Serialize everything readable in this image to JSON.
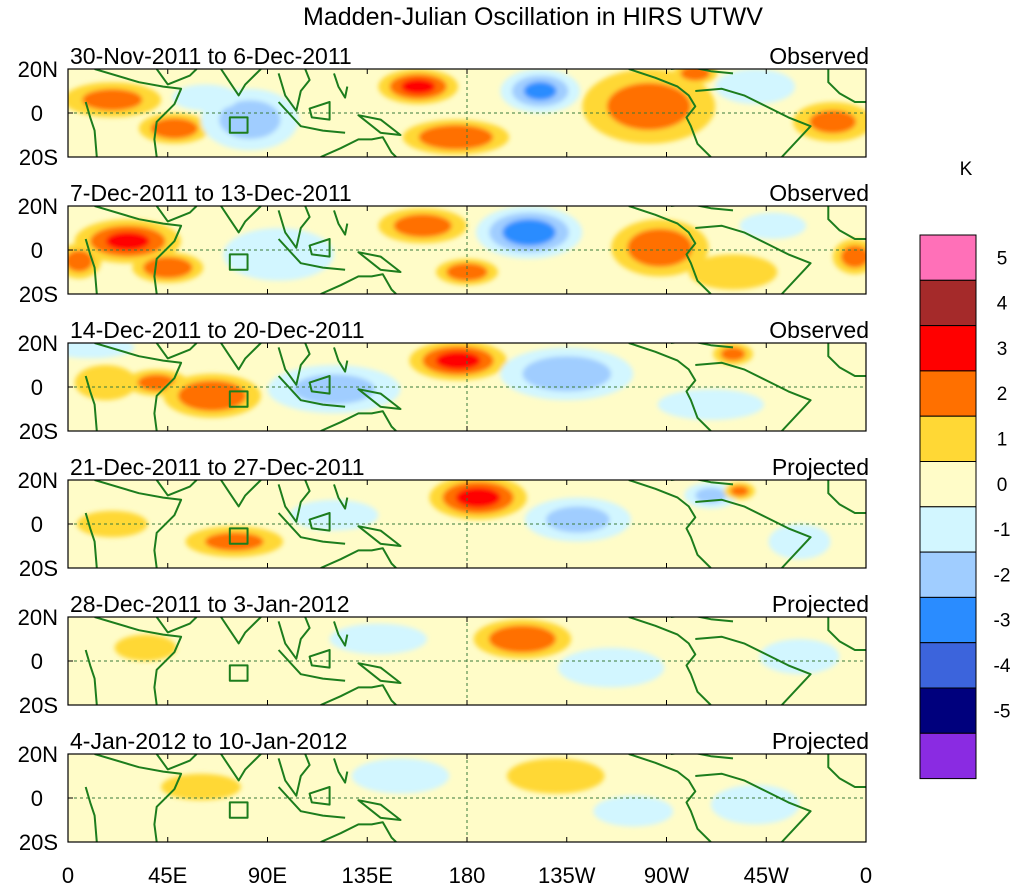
{
  "chart_data": {
    "type": "heatmap",
    "title": "Madden-Julian Oscillation in HIRS UTWV",
    "units": "K",
    "x_ticks": [
      "0",
      "45E",
      "90E",
      "135E",
      "180",
      "135W",
      "90W",
      "45W",
      "0"
    ],
    "x_values": [
      0,
      45,
      90,
      135,
      180,
      225,
      270,
      315,
      360
    ],
    "y_ticks": [
      "20N",
      "0",
      "20S"
    ],
    "y_values": [
      20,
      0,
      -20
    ],
    "colorbar": {
      "labels": [
        "5",
        "4",
        "3",
        "2",
        "1",
        "0",
        "-1",
        "-2",
        "-3",
        "-4",
        "-5"
      ],
      "levels": [
        5,
        4,
        3,
        2,
        1,
        0,
        -1,
        -2,
        -3,
        -4,
        -5
      ],
      "colors": [
        "#ff70b8",
        "#a52a2a",
        "#ff0000",
        "#ff7000",
        "#ffd835",
        "#fffcc8",
        "#d2f6ff",
        "#a0cdff",
        "#2a8cff",
        "#3c64dc",
        "#00007d",
        "#8a2be2"
      ]
    },
    "panels": [
      {
        "period": "30-Nov-2011 to 6-Dec-2011",
        "status": "Observed",
        "anomalies": [
          {
            "lon": 20,
            "lat": 6,
            "rx": 22,
            "ry": 8,
            "v": 2.2
          },
          {
            "lon": 48,
            "lat": -7,
            "rx": 16,
            "ry": 7,
            "v": 2.6
          },
          {
            "lon": 82,
            "lat": -3,
            "rx": 22,
            "ry": 14,
            "v": -2.3
          },
          {
            "lon": 62,
            "lat": 7,
            "rx": 15,
            "ry": 6,
            "v": -1.2
          },
          {
            "lon": 158,
            "lat": 12,
            "rx": 18,
            "ry": 8,
            "v": 3.1
          },
          {
            "lon": 175,
            "lat": -11,
            "rx": 24,
            "ry": 8,
            "v": 2.9
          },
          {
            "lon": 213,
            "lat": 10,
            "rx": 18,
            "ry": 10,
            "v": -3.0
          },
          {
            "lon": 262,
            "lat": 3,
            "rx": 30,
            "ry": 17,
            "v": 2.3
          },
          {
            "lon": 283,
            "lat": 18,
            "rx": 10,
            "ry": 5,
            "v": 2.6
          },
          {
            "lon": 345,
            "lat": -4,
            "rx": 18,
            "ry": 9,
            "v": 2.0
          },
          {
            "lon": 150,
            "lat": -2,
            "rx": 20,
            "ry": 9,
            "v": -0.7
          },
          {
            "lon": 310,
            "lat": 12,
            "rx": 18,
            "ry": 8,
            "v": -1.3
          }
        ]
      },
      {
        "period": "7-Dec-2011 to 13-Dec-2011",
        "status": "Observed",
        "anomalies": [
          {
            "lon": 27,
            "lat": 4,
            "rx": 24,
            "ry": 10,
            "v": 3.0
          },
          {
            "lon": 45,
            "lat": -8,
            "rx": 16,
            "ry": 7,
            "v": 2.9
          },
          {
            "lon": 5,
            "lat": -5,
            "rx": 10,
            "ry": 8,
            "v": 2.2
          },
          {
            "lon": 95,
            "lat": -2,
            "rx": 25,
            "ry": 12,
            "v": -1.8
          },
          {
            "lon": 160,
            "lat": 11,
            "rx": 20,
            "ry": 8,
            "v": 2.5
          },
          {
            "lon": 180,
            "lat": -10,
            "rx": 14,
            "ry": 6,
            "v": 2.6
          },
          {
            "lon": 208,
            "lat": 8,
            "rx": 24,
            "ry": 12,
            "v": -3.6
          },
          {
            "lon": 267,
            "lat": 1,
            "rx": 22,
            "ry": 13,
            "v": 2.6
          },
          {
            "lon": 318,
            "lat": 11,
            "rx": 15,
            "ry": 6,
            "v": -1.8
          },
          {
            "lon": 355,
            "lat": -3,
            "rx": 10,
            "ry": 8,
            "v": 2.3
          },
          {
            "lon": 300,
            "lat": -10,
            "rx": 20,
            "ry": 8,
            "v": 1.2
          }
        ]
      },
      {
        "period": "14-Dec-2011 to 20-Dec-2011",
        "status": "Observed",
        "anomalies": [
          {
            "lon": 17,
            "lat": 2,
            "rx": 14,
            "ry": 8,
            "v": 1.7
          },
          {
            "lon": 40,
            "lat": 2,
            "rx": 14,
            "ry": 6,
            "v": 2.2
          },
          {
            "lon": 65,
            "lat": -4,
            "rx": 22,
            "ry": 10,
            "v": 2.9
          },
          {
            "lon": 120,
            "lat": -1,
            "rx": 30,
            "ry": 11,
            "v": -2.2
          },
          {
            "lon": 176,
            "lat": 12,
            "rx": 22,
            "ry": 9,
            "v": 3.3
          },
          {
            "lon": 225,
            "lat": 6,
            "rx": 30,
            "ry": 12,
            "v": -2.6
          },
          {
            "lon": 300,
            "lat": 15,
            "rx": 9,
            "ry": 5,
            "v": 2.2
          },
          {
            "lon": 290,
            "lat": -8,
            "rx": 24,
            "ry": 7,
            "v": -1.3
          },
          {
            "lon": 10,
            "lat": 18,
            "rx": 20,
            "ry": 5,
            "v": -1.5
          },
          {
            "lon": 352,
            "lat": 8,
            "rx": 14,
            "ry": 10,
            "v": -0.9
          }
        ]
      },
      {
        "period": "21-Dec-2011 to 27-Dec-2011",
        "status": "Projected",
        "anomalies": [
          {
            "lon": 75,
            "lat": -8,
            "rx": 22,
            "ry": 7,
            "v": 2.1
          },
          {
            "lon": 185,
            "lat": 12,
            "rx": 22,
            "ry": 10,
            "v": 3.3
          },
          {
            "lon": 230,
            "lat": 2,
            "rx": 24,
            "ry": 10,
            "v": -2.1
          },
          {
            "lon": 290,
            "lat": 13,
            "rx": 12,
            "ry": 6,
            "v": -2.0
          },
          {
            "lon": 303,
            "lat": 15,
            "rx": 7,
            "ry": 4,
            "v": 2.1
          },
          {
            "lon": 330,
            "lat": -8,
            "rx": 14,
            "ry": 8,
            "v": -1.5
          },
          {
            "lon": 120,
            "lat": 4,
            "rx": 20,
            "ry": 7,
            "v": -1.2
          },
          {
            "lon": 40,
            "lat": 12,
            "rx": 16,
            "ry": 5,
            "v": -0.8
          },
          {
            "lon": 20,
            "lat": 0,
            "rx": 16,
            "ry": 6,
            "v": 1.2
          }
        ]
      },
      {
        "period": "28-Dec-2011 to 3-Jan-2012",
        "status": "Projected",
        "anomalies": [
          {
            "lon": 205,
            "lat": 10,
            "rx": 22,
            "ry": 9,
            "v": 2.8
          },
          {
            "lon": 140,
            "lat": 10,
            "rx": 22,
            "ry": 7,
            "v": -1.6
          },
          {
            "lon": 245,
            "lat": -3,
            "rx": 24,
            "ry": 9,
            "v": -1.3
          },
          {
            "lon": 80,
            "lat": -2,
            "rx": 24,
            "ry": 10,
            "v": 0.8
          },
          {
            "lon": 330,
            "lat": 2,
            "rx": 18,
            "ry": 8,
            "v": -1.2
          },
          {
            "lon": 35,
            "lat": 6,
            "rx": 14,
            "ry": 6,
            "v": 1.0
          }
        ]
      },
      {
        "period": "4-Jan-2012 to 10-Jan-2012",
        "status": "Projected",
        "anomalies": [
          {
            "lon": 220,
            "lat": 10,
            "rx": 22,
            "ry": 8,
            "v": 1.8
          },
          {
            "lon": 150,
            "lat": 10,
            "rx": 22,
            "ry": 8,
            "v": -1.6
          },
          {
            "lon": 60,
            "lat": 5,
            "rx": 18,
            "ry": 6,
            "v": 1.2
          },
          {
            "lon": 310,
            "lat": -3,
            "rx": 20,
            "ry": 9,
            "v": -1.4
          },
          {
            "lon": 100,
            "lat": -6,
            "rx": 24,
            "ry": 8,
            "v": 0.8
          },
          {
            "lon": 255,
            "lat": -6,
            "rx": 18,
            "ry": 7,
            "v": -1.0
          }
        ]
      }
    ]
  }
}
